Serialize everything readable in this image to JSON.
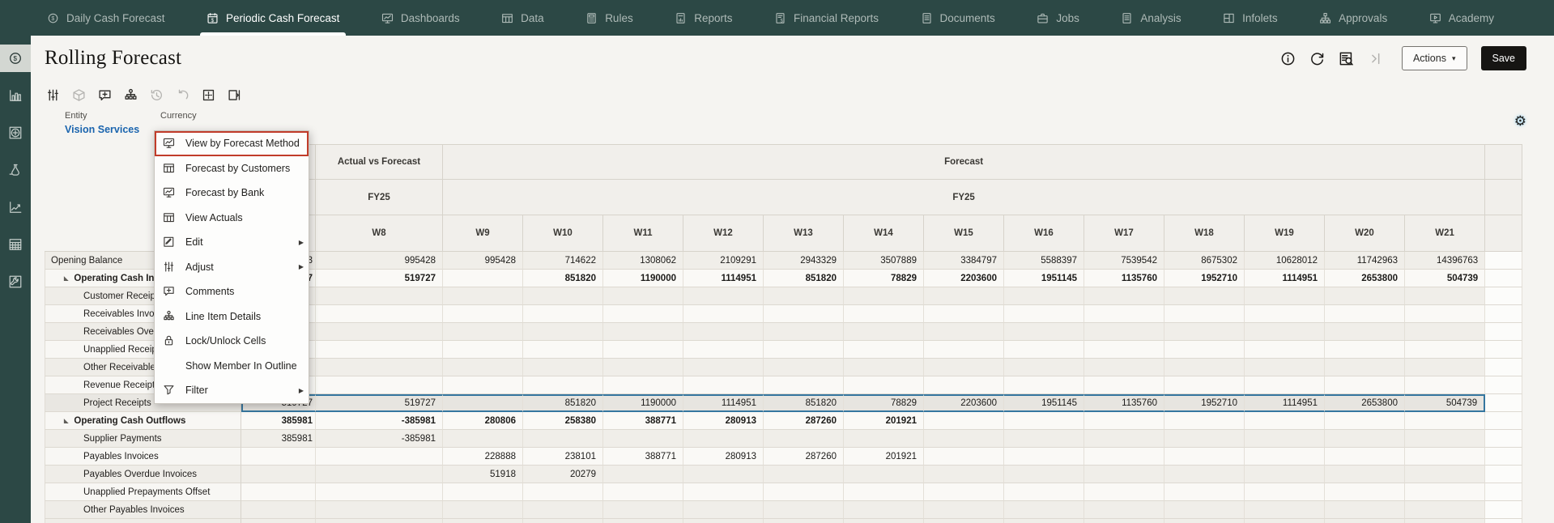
{
  "colors": {
    "nav_bg": "#2c4845",
    "accent_red": "#c13c2a",
    "selection_blue": "#35769f",
    "pov_link_blue": "#1a64ae",
    "save_bg": "#161513"
  },
  "icons": {
    "caret_down": "▾",
    "twisty_expanded": "◣",
    "submenu_arrow": "▶",
    "gear": "⚙"
  },
  "nav": {
    "tabs": [
      {
        "label": "Daily Cash Forecast",
        "icon": "coin-dollar-icon",
        "active": false
      },
      {
        "label": "Periodic Cash Forecast",
        "icon": "calendar-dollar-icon",
        "active": true
      },
      {
        "label": "Dashboards",
        "icon": "monitor-chart-icon",
        "active": false
      },
      {
        "label": "Data",
        "icon": "table-icon",
        "active": false
      },
      {
        "label": "Rules",
        "icon": "calculator-icon",
        "active": false
      },
      {
        "label": "Reports",
        "icon": "doc-chart-icon",
        "active": false
      },
      {
        "label": "Financial Reports",
        "icon": "doc-dollar-icon",
        "active": false
      },
      {
        "label": "Documents",
        "icon": "doc-icon",
        "active": false
      },
      {
        "label": "Jobs",
        "icon": "briefcase-icon",
        "active": false
      },
      {
        "label": "Analysis",
        "icon": "doc-icon",
        "active": false
      },
      {
        "label": "Infolets",
        "icon": "infolets-icon",
        "active": false
      },
      {
        "label": "Approvals",
        "icon": "org-chart-icon",
        "active": false
      },
      {
        "label": "Academy",
        "icon": "academy-icon",
        "active": false
      }
    ]
  },
  "sidebar": {
    "items": [
      {
        "name": "cash-forecast",
        "icon": "coin-dollar-icon",
        "active": true
      },
      {
        "name": "bar-chart",
        "icon": "bar-chart-icon",
        "active": false
      },
      {
        "name": "circle-plus",
        "icon": "circle-plus-icon",
        "active": false
      },
      {
        "name": "flask",
        "icon": "flask-icon",
        "active": false
      },
      {
        "name": "line-chart",
        "icon": "trend-icon",
        "active": false
      },
      {
        "name": "data-grid",
        "icon": "grid-dots-icon",
        "active": false
      },
      {
        "name": "tools",
        "icon": "wrench-icon",
        "active": false
      }
    ]
  },
  "header": {
    "title": "Rolling Forecast",
    "actions_label": "Actions",
    "save_label": "Save"
  },
  "toolbar": {
    "buttons": [
      {
        "name": "adjust",
        "icon": "sliders-icon",
        "disabled": false
      },
      {
        "name": "cube",
        "icon": "cube-icon",
        "disabled": true
      },
      {
        "name": "comment",
        "icon": "comment-plus-icon",
        "disabled": false
      },
      {
        "name": "line-item-details",
        "icon": "hierarchy-icon",
        "disabled": false
      },
      {
        "name": "history",
        "icon": "history-icon",
        "disabled": true
      },
      {
        "name": "undo",
        "icon": "undo-icon",
        "disabled": true
      },
      {
        "name": "grid-format",
        "icon": "grid-frame-icon",
        "disabled": false
      },
      {
        "name": "freeze-pane",
        "icon": "page-bar-icon",
        "disabled": false
      }
    ]
  },
  "pov": {
    "entity_label": "Entity",
    "entity_value": "Vision Services",
    "currency_label": "Currency"
  },
  "context_menu": {
    "items": [
      {
        "label": "View by Forecast Method",
        "icon": "monitor-chart-icon",
        "submenu": false,
        "highlighted": true
      },
      {
        "label": "Forecast by Customers",
        "icon": "table-icon",
        "submenu": false,
        "highlighted": false
      },
      {
        "label": "Forecast by Bank",
        "icon": "monitor-chart-icon",
        "submenu": false,
        "highlighted": false
      },
      {
        "label": "View Actuals",
        "icon": "table-icon",
        "submenu": false,
        "highlighted": false
      },
      {
        "label": "Edit",
        "icon": "pencil-icon",
        "submenu": true,
        "highlighted": false
      },
      {
        "label": "Adjust",
        "icon": "sliders-icon",
        "submenu": true,
        "highlighted": false
      },
      {
        "label": "Comments",
        "icon": "comment-plus-icon",
        "submenu": false,
        "highlighted": false
      },
      {
        "label": "Line Item Details",
        "icon": "hierarchy-icon",
        "submenu": false,
        "highlighted": false
      },
      {
        "label": "Lock/Unlock Cells",
        "icon": "lock-icon",
        "submenu": false,
        "highlighted": false
      },
      {
        "label": "Show Member In Outline",
        "icon": null,
        "submenu": false,
        "highlighted": false
      },
      {
        "label": "Filter",
        "icon": "funnel-icon",
        "submenu": true,
        "highlighted": false
      }
    ]
  },
  "grid": {
    "groups": [
      {
        "label": "Actual vs Forecast",
        "year": "FY25",
        "weeks": [
          "W8"
        ]
      },
      {
        "label": "Forecast",
        "year": "FY25",
        "weeks": [
          "W9",
          "W10",
          "W11",
          "W12",
          "W13",
          "W14",
          "W15",
          "W16",
          "W17",
          "W18",
          "W19",
          "W20",
          "W21"
        ]
      }
    ],
    "rows": [
      {
        "label": "Opening Balance",
        "level": 0,
        "bold": false,
        "twisty": false,
        "selected": false,
        "values": [
          "3",
          "995428",
          "995428",
          "714622",
          "1308062",
          "2109291",
          "2943329",
          "3507889",
          "3384797",
          "5588397",
          "7539542",
          "8675302",
          "10628012",
          "11742963",
          "14396763"
        ]
      },
      {
        "label": "Operating Cash Inflows",
        "level": 1,
        "bold": true,
        "twisty": true,
        "selected": false,
        "values": [
          "7",
          "519727",
          "",
          "851820",
          "1190000",
          "1114951",
          "851820",
          "78829",
          "2203600",
          "1951145",
          "1135760",
          "1952710",
          "1114951",
          "2653800",
          "504739"
        ]
      },
      {
        "label": "Customer Receipts",
        "level": 2,
        "bold": false,
        "twisty": false,
        "selected": false,
        "values": [
          "",
          "",
          "",
          "",
          "",
          "",
          "",
          "",
          "",
          "",
          "",
          "",
          "",
          "",
          ""
        ]
      },
      {
        "label": "Receivables Invoices",
        "level": 2,
        "bold": false,
        "twisty": false,
        "selected": false,
        "values": [
          "",
          "",
          "",
          "",
          "",
          "",
          "",
          "",
          "",
          "",
          "",
          "",
          "",
          "",
          ""
        ]
      },
      {
        "label": "Receivables Overdue Invoices",
        "level": 2,
        "bold": false,
        "twisty": false,
        "selected": false,
        "values": [
          "",
          "",
          "",
          "",
          "",
          "",
          "",
          "",
          "",
          "",
          "",
          "",
          "",
          "",
          ""
        ]
      },
      {
        "label": "Unapplied Receipts Offset",
        "level": 2,
        "bold": false,
        "twisty": false,
        "selected": false,
        "values": [
          "",
          "",
          "",
          "",
          "",
          "",
          "",
          "",
          "",
          "",
          "",
          "",
          "",
          "",
          ""
        ]
      },
      {
        "label": "Other Receivables Invoices",
        "level": 2,
        "bold": false,
        "twisty": false,
        "selected": false,
        "values": [
          "",
          "",
          "",
          "",
          "",
          "",
          "",
          "",
          "",
          "",
          "",
          "",
          "",
          "",
          ""
        ]
      },
      {
        "label": "Revenue Receipts",
        "level": 2,
        "bold": false,
        "twisty": false,
        "selected": false,
        "values": [
          "",
          "",
          "",
          "",
          "",
          "",
          "",
          "",
          "",
          "",
          "",
          "",
          "",
          "",
          ""
        ]
      },
      {
        "label": "Project Receipts",
        "level": 2,
        "bold": false,
        "twisty": false,
        "selected": true,
        "values": [
          "519727",
          "519727",
          "",
          "851820",
          "1190000",
          "1114951",
          "851820",
          "78829",
          "2203600",
          "1951145",
          "1135760",
          "1952710",
          "1114951",
          "2653800",
          "504739"
        ]
      },
      {
        "label": "Operating Cash Outflows",
        "level": 1,
        "bold": true,
        "twisty": true,
        "selected": false,
        "values": [
          "385981",
          "-385981",
          "280806",
          "258380",
          "388771",
          "280913",
          "287260",
          "201921",
          "",
          "",
          "",
          "",
          "",
          "",
          ""
        ]
      },
      {
        "label": "Supplier Payments",
        "level": 2,
        "bold": false,
        "twisty": false,
        "selected": false,
        "values": [
          "385981",
          "-385981",
          "",
          "",
          "",
          "",
          "",
          "",
          "",
          "",
          "",
          "",
          "",
          "",
          ""
        ]
      },
      {
        "label": "Payables Invoices",
        "level": 2,
        "bold": false,
        "twisty": false,
        "selected": false,
        "values": [
          "",
          "",
          "228888",
          "238101",
          "388771",
          "280913",
          "287260",
          "201921",
          "",
          "",
          "",
          "",
          "",
          "",
          ""
        ]
      },
      {
        "label": "Payables Overdue Invoices",
        "level": 2,
        "bold": false,
        "twisty": false,
        "selected": false,
        "values": [
          "",
          "",
          "51918",
          "20279",
          "",
          "",
          "",
          "",
          "",
          "",
          "",
          "",
          "",
          "",
          ""
        ]
      },
      {
        "label": "Unapplied Prepayments Offset",
        "level": 2,
        "bold": false,
        "twisty": false,
        "selected": false,
        "values": [
          "",
          "",
          "",
          "",
          "",
          "",
          "",
          "",
          "",
          "",
          "",
          "",
          "",
          "",
          ""
        ]
      },
      {
        "label": "Other Payables Invoices",
        "level": 2,
        "bold": false,
        "twisty": false,
        "selected": false,
        "values": [
          "",
          "",
          "",
          "",
          "",
          "",
          "",
          "",
          "",
          "",
          "",
          "",
          "",
          "",
          ""
        ]
      }
    ]
  }
}
